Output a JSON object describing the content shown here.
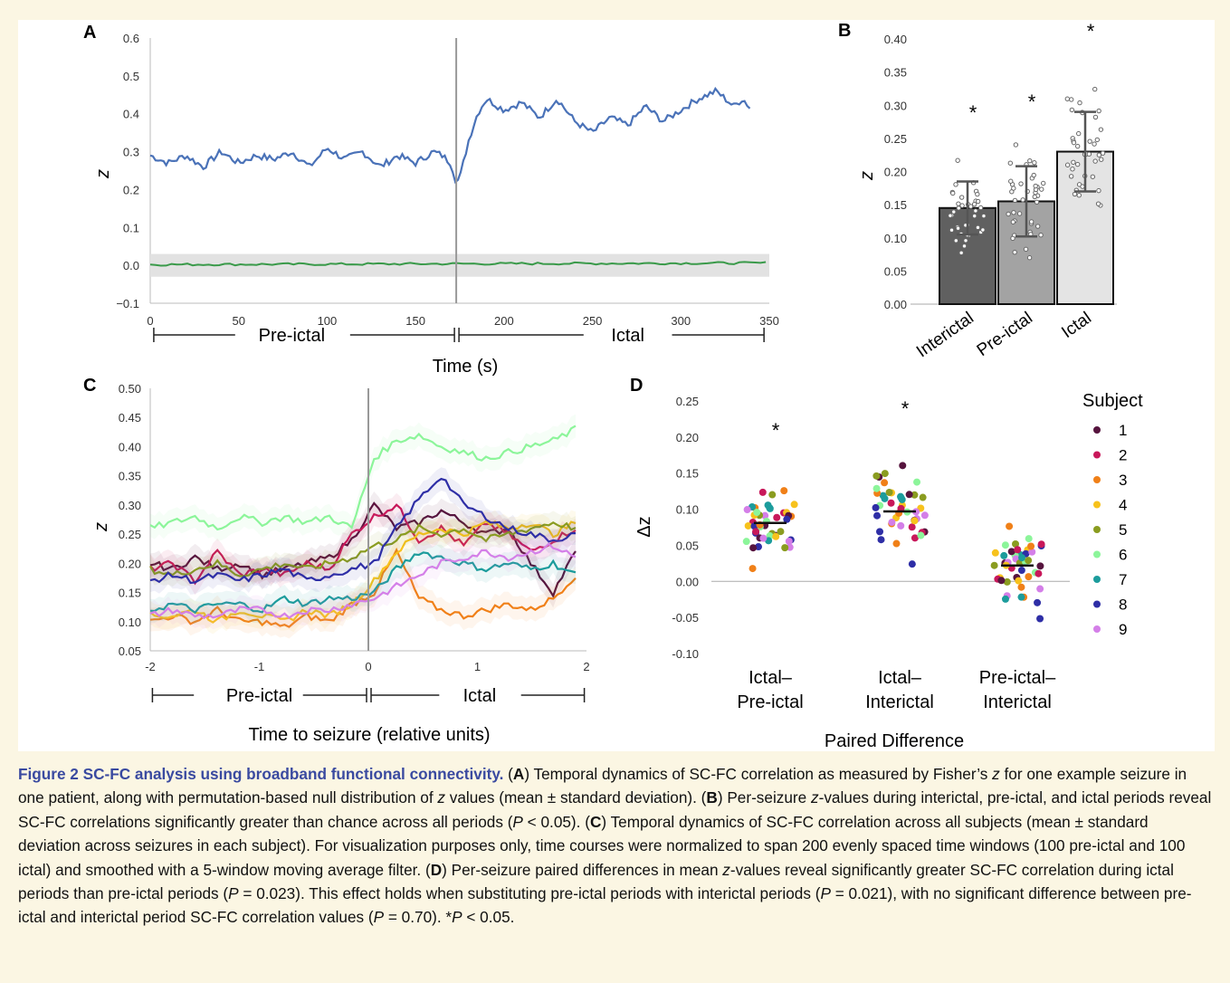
{
  "panels": {
    "A": {
      "letter": "A"
    },
    "B": {
      "letter": "B"
    },
    "C": {
      "letter": "C"
    },
    "D": {
      "letter": "D"
    }
  },
  "chart_data": [
    {
      "panel": "A",
      "type": "line",
      "ylabel": "z",
      "xlabel": "Time (s)",
      "xlim": [
        0,
        350
      ],
      "ylim": [
        -0.1,
        0.6
      ],
      "x_ticks": [
        "0",
        "50",
        "100",
        "150",
        "200",
        "250",
        "300",
        "350"
      ],
      "y_ticks": [
        "−0.1",
        "0.0",
        "0.1",
        "0.2",
        "0.3",
        "0.4",
        "0.5",
        "0.6"
      ],
      "period_labels": [
        "Pre-ictal",
        "Ictal"
      ],
      "seizure_onset_x": 173,
      "series": [
        {
          "color": "#4a72b8",
          "x": [
            0,
            10,
            20,
            30,
            40,
            50,
            60,
            70,
            80,
            90,
            100,
            110,
            120,
            130,
            140,
            150,
            160,
            165,
            170,
            173,
            175,
            180,
            185,
            190,
            200,
            210,
            220,
            230,
            240,
            250,
            260,
            270,
            280,
            290,
            300,
            310,
            320,
            330,
            335,
            340
          ],
          "y": [
            0.29,
            0.27,
            0.29,
            0.26,
            0.3,
            0.27,
            0.29,
            0.28,
            0.3,
            0.26,
            0.31,
            0.28,
            0.3,
            0.26,
            0.29,
            0.27,
            0.3,
            0.29,
            0.27,
            0.22,
            0.23,
            0.33,
            0.4,
            0.44,
            0.41,
            0.43,
            0.39,
            0.44,
            0.38,
            0.35,
            0.39,
            0.37,
            0.42,
            0.38,
            0.41,
            0.44,
            0.46,
            0.42,
            0.44,
            0.41
          ]
        },
        {
          "color": "#3a9a4a",
          "x": [
            0,
            50,
            100,
            150,
            200,
            250,
            300,
            350
          ],
          "y": [
            0.0,
            0.003,
            0.0,
            0.002,
            0.003,
            0.0,
            0.004,
            0.006
          ],
          "band": "#e2e2e2"
        }
      ]
    },
    {
      "panel": "B",
      "type": "bar",
      "ylabel": "z",
      "categories": [
        "Interictal",
        "Pre-ictal",
        "Ictal"
      ],
      "values": [
        0.145,
        0.155,
        0.23
      ],
      "errors": [
        0.04,
        0.053,
        0.06
      ],
      "colors": [
        "#606060",
        "#a3a3a3",
        "#e4e4e4"
      ],
      "ylim": [
        0,
        0.4
      ],
      "y_ticks": [
        "0.00",
        "0.05",
        "0.10",
        "0.15",
        "0.20",
        "0.25",
        "0.30",
        "0.35",
        "0.40"
      ],
      "significance": [
        "*",
        "*",
        "*"
      ]
    },
    {
      "panel": "C",
      "type": "line",
      "ylabel": "z",
      "xlabel": "Time to seizure (relative units)",
      "xlim": [
        -2,
        2
      ],
      "ylim": [
        0.05,
        0.5
      ],
      "x_ticks": [
        "-2",
        "-1",
        "0",
        "1",
        "2"
      ],
      "y_ticks": [
        "0.05",
        "0.10",
        "0.15",
        "0.20",
        "0.25",
        "0.30",
        "0.35",
        "0.40",
        "0.45",
        "0.50"
      ],
      "period_labels": [
        "Pre-ictal",
        "Ictal"
      ],
      "series": [
        {
          "color": "#56143e",
          "y": [
            0.2,
            0.19,
            0.21,
            0.19,
            0.2,
            0.18,
            0.19,
            0.2,
            0.21,
            0.24,
            0.3,
            0.26,
            0.27,
            0.29,
            0.27,
            0.25,
            0.26,
            0.2,
            0.15,
            0.22
          ]
        },
        {
          "color": "#c8185a",
          "y": [
            0.19,
            0.2,
            0.17,
            0.22,
            0.18,
            0.19,
            0.18,
            0.2,
            0.19,
            0.25,
            0.28,
            0.3,
            0.24,
            0.26,
            0.23,
            0.27,
            0.25,
            0.22,
            0.24,
            0.26
          ]
        },
        {
          "color": "#f08018",
          "y": [
            0.1,
            0.11,
            0.1,
            0.12,
            0.1,
            0.1,
            0.09,
            0.11,
            0.1,
            0.13,
            0.15,
            0.22,
            0.14,
            0.12,
            0.11,
            0.12,
            0.13,
            0.12,
            0.14,
            0.18
          ]
        },
        {
          "color": "#f7c21c",
          "y": [
            0.11,
            0.11,
            0.12,
            0.1,
            0.12,
            0.11,
            0.1,
            0.12,
            0.11,
            0.13,
            0.17,
            0.22,
            0.25,
            0.26,
            0.25,
            0.27,
            0.26,
            0.27,
            0.25,
            0.27
          ]
        },
        {
          "color": "#8a9c20",
          "y": [
            0.19,
            0.18,
            0.19,
            0.2,
            0.18,
            0.19,
            0.2,
            0.19,
            0.2,
            0.21,
            0.23,
            0.24,
            0.26,
            0.25,
            0.26,
            0.24,
            0.25,
            0.26,
            0.27,
            0.26
          ]
        },
        {
          "color": "#8cf59a",
          "y": [
            0.26,
            0.27,
            0.28,
            0.26,
            0.28,
            0.27,
            0.28,
            0.27,
            0.28,
            0.26,
            0.38,
            0.41,
            0.42,
            0.4,
            0.39,
            0.38,
            0.39,
            0.4,
            0.41,
            0.43
          ]
        },
        {
          "color": "#1c9c9c",
          "y": [
            0.12,
            0.13,
            0.12,
            0.13,
            0.13,
            0.12,
            0.14,
            0.13,
            0.14,
            0.14,
            0.15,
            0.19,
            0.22,
            0.21,
            0.2,
            0.19,
            0.2,
            0.19,
            0.2,
            0.18
          ]
        },
        {
          "color": "#2e2ea6",
          "y": [
            0.17,
            0.18,
            0.17,
            0.18,
            0.17,
            0.18,
            0.19,
            0.17,
            0.18,
            0.19,
            0.2,
            0.26,
            0.31,
            0.35,
            0.3,
            0.28,
            0.26,
            0.25,
            0.24,
            0.25
          ]
        },
        {
          "color": "#d47fe8",
          "y": [
            0.11,
            0.12,
            0.11,
            0.11,
            0.12,
            0.12,
            0.11,
            0.12,
            0.12,
            0.13,
            0.14,
            0.16,
            0.18,
            0.2,
            0.21,
            0.22,
            0.21,
            0.22,
            0.23,
            0.21
          ]
        }
      ]
    },
    {
      "panel": "D",
      "type": "scatter",
      "ylabel": "Δz",
      "xlabel": "Paired Difference",
      "categories": [
        "Ictal – Pre-ictal",
        "Ictal – Interictal",
        "Pre-ictal – Interictal"
      ],
      "means": [
        0.081,
        0.097,
        0.022
      ],
      "ylim": [
        -0.1,
        0.25
      ],
      "y_ticks": [
        "-0.10",
        "-0.05",
        "0.00",
        "0.05",
        "0.10",
        "0.15",
        "0.20",
        "0.25"
      ],
      "significance": [
        "*",
        "*",
        ""
      ],
      "legend": {
        "title": "Subject",
        "entries": [
          "1",
          "2",
          "3",
          "4",
          "5",
          "6",
          "7",
          "8",
          "9"
        ],
        "colors": [
          "#56143e",
          "#c8185a",
          "#f08018",
          "#f7c21c",
          "#8a9c20",
          "#8cf59a",
          "#1c9c9c",
          "#2e2ea6",
          "#d47fe8"
        ]
      }
    }
  ],
  "caption": {
    "title": "Figure 2  SC-FC analysis using broadband functional connectivity.",
    "a": "Temporal dynamics of SC-FC correlation as measured by Fisher’s",
    "a2": "for one example seizure in one patient, along with permutation-based null distribution of",
    "a3": "values (mean ± standard deviation).",
    "b1": "Per-seizure",
    "b2": "-values during interictal, pre-ictal, and ictal periods reveal SC-FC correlations significantly greater than chance across all periods (",
    "b3": "< 0.05).",
    "c": "Temporal dynamics of SC-FC correlation across all subjects (mean ± standard deviation across seizures in each subject). For visualization purposes only, time courses were normalized to span 200 evenly spaced time windows (100 pre-ictal and 100 ictal) and smoothed with a 5-window moving average filter.",
    "d1": "Per-seizure paired differences in mean",
    "d2": "-values reveal significantly greater SC-FC correlation during ictal periods than pre-ictal periods (",
    "d3": "= 0.023). This effect holds when substituting pre-ictal periods with interictal periods (",
    "d4": "= 0.021), with no significant difference between pre-ictal and interictal period SC-FC correlation values (",
    "d5": "= 0.70). *",
    "d6": "< 0.05."
  }
}
